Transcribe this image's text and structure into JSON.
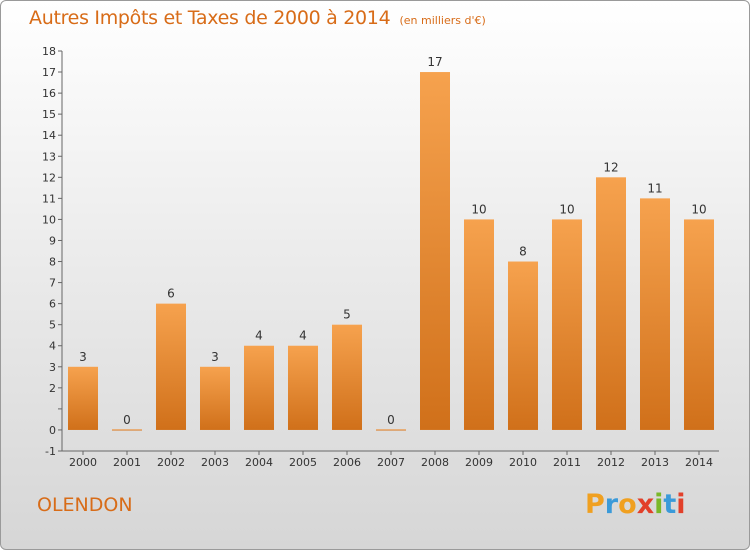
{
  "title": "Autres Impôts et Taxes de 2000 à 2014",
  "subtitle": "(en milliers d'€)",
  "location": "OLENDON",
  "logo": {
    "letters": [
      "P",
      "r",
      "o",
      "x",
      "i",
      "t",
      "i"
    ],
    "colors": [
      "#f0a020",
      "#3a9ad9",
      "#f0a020",
      "#e2402a",
      "#7ab829",
      "#3a9ad9",
      "#e2402a"
    ]
  },
  "colors": {
    "bar": "#ef8a2c",
    "bar_dark": "#d0701a",
    "title": "#d86c18",
    "axis": "#666666"
  },
  "chart_data": {
    "type": "bar",
    "categories": [
      "2000",
      "2001",
      "2002",
      "2003",
      "2004",
      "2005",
      "2006",
      "2007",
      "2008",
      "2009",
      "2010",
      "2011",
      "2012",
      "2013",
      "2014"
    ],
    "values": [
      3,
      0,
      6,
      3,
      4,
      4,
      5,
      0,
      17,
      10,
      8,
      10,
      12,
      11,
      10
    ],
    "title": "Autres Impôts et Taxes de 2000 à 2014",
    "xlabel": "",
    "ylabel": "",
    "ylim": [
      -1,
      18
    ],
    "yticks": [
      -1,
      0,
      1,
      2,
      3,
      4,
      5,
      6,
      7,
      8,
      9,
      10,
      11,
      12,
      13,
      14,
      15,
      16,
      17,
      18
    ],
    "ytick_labels": [
      "-1",
      "0",
      "",
      "2",
      "3",
      "4",
      "5",
      "6",
      "7",
      "8",
      "9",
      "10",
      "11",
      "12",
      "13",
      "14",
      "15",
      "16",
      "17",
      "18"
    ],
    "grid": false,
    "legend": "none"
  }
}
